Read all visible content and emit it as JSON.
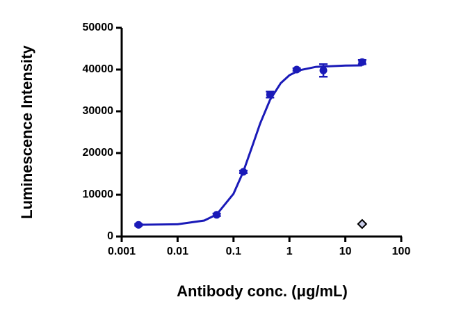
{
  "chart_data": {
    "type": "scatter",
    "xlabel": "Antibody conc. (μg/mL)",
    "ylabel": "Luminescence Intensity",
    "xscale": "log",
    "xlim": [
      0.001,
      100
    ],
    "xticks": [
      0.001,
      0.01,
      0.1,
      1,
      10,
      100
    ],
    "ylim": [
      0,
      50000
    ],
    "yticks": [
      0,
      10000,
      20000,
      30000,
      40000,
      50000
    ],
    "series": [
      {
        "type": "line",
        "color": "#1a1ab8",
        "x": [
          0.002,
          0.01,
          0.03,
          0.05,
          0.1,
          0.15,
          0.22,
          0.3,
          0.45,
          0.7,
          1,
          1.5,
          3,
          10,
          20
        ],
        "values": [
          2808,
          2946,
          3830,
          5280,
          10245,
          15575,
          21900,
          27100,
          32740,
          36755,
          38650,
          39830,
          40655,
          40960,
          41000
        ]
      },
      {
        "type": "scatter",
        "marker": "circle",
        "color": "#1a1ab8",
        "x": [
          0.002,
          0.05,
          0.15,
          0.45,
          1.35,
          4.05,
          20
        ],
        "values": [
          2800,
          5200,
          15500,
          34000,
          40000,
          39800,
          41800
        ],
        "errors": [
          200,
          300,
          300,
          700,
          300,
          1500,
          500
        ]
      },
      {
        "type": "scatter",
        "marker": "diamond",
        "color": "#000000",
        "x": [
          20
        ],
        "values": [
          3000
        ]
      }
    ]
  }
}
